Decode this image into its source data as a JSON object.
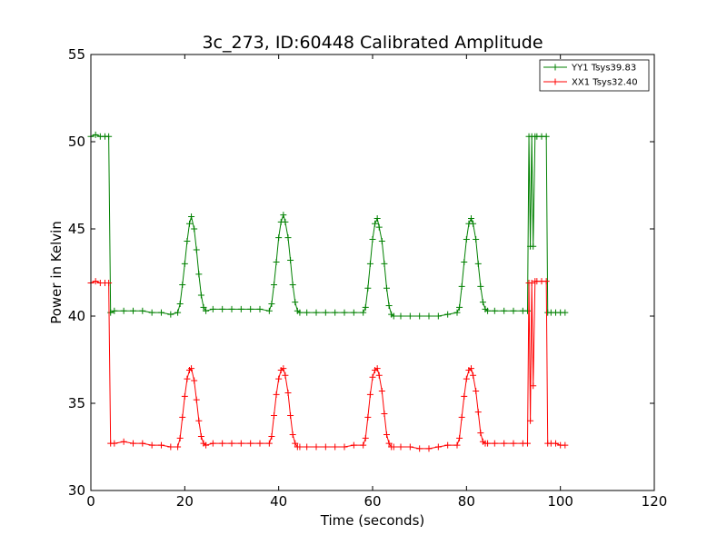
{
  "chart_data": {
    "type": "line",
    "title": "3c_273, ID:60448 Calibrated Amplitude",
    "xlabel": "Time (seconds)",
    "ylabel": "Power in Kelvin",
    "xlim": [
      0,
      120
    ],
    "ylim": [
      30,
      55
    ],
    "xticks": [
      "0",
      "20",
      "40",
      "60",
      "80",
      "100",
      "120"
    ],
    "yticks": [
      "30",
      "35",
      "40",
      "45",
      "50",
      "55"
    ],
    "grid": false,
    "legend_position": "top-right",
    "marker": "plus",
    "series": [
      {
        "name": "YY1 Tsys39.83",
        "color": "#008000",
        "x": [
          0,
          1,
          2,
          3,
          3.8,
          4.2,
          5,
          7,
          9,
          11,
          13,
          15,
          17,
          18.5,
          19,
          19.5,
          20,
          20.5,
          21,
          21.4,
          22,
          22.5,
          23,
          23.5,
          24,
          24.5,
          26,
          28,
          30,
          32,
          34,
          36,
          38,
          38.5,
          39,
          39.5,
          40,
          40.5,
          41,
          41.4,
          42,
          42.5,
          43,
          43.5,
          44,
          44.5,
          46,
          48,
          50,
          52,
          54,
          56,
          58,
          58.5,
          59,
          59.5,
          60,
          60.5,
          61,
          61.4,
          62,
          62.5,
          63,
          63.5,
          64,
          64.5,
          66,
          68,
          70,
          72,
          74,
          76,
          78,
          78.5,
          79,
          79.5,
          80,
          80.5,
          81,
          81.4,
          82,
          82.5,
          83,
          83.5,
          84,
          84.5,
          86,
          88,
          90,
          92,
          93,
          93.3,
          93.6,
          93.9,
          94.2,
          94.6,
          95,
          96,
          97,
          97.3,
          98,
          99,
          100,
          101
        ],
        "y": [
          50.3,
          50.4,
          50.3,
          50.3,
          50.3,
          40.2,
          40.3,
          40.3,
          40.3,
          40.3,
          40.2,
          40.2,
          40.1,
          40.2,
          40.7,
          41.8,
          43.0,
          44.3,
          45.3,
          45.7,
          45.0,
          43.8,
          42.4,
          41.2,
          40.5,
          40.3,
          40.4,
          40.4,
          40.4,
          40.4,
          40.4,
          40.4,
          40.3,
          40.7,
          41.8,
          43.1,
          44.5,
          45.4,
          45.8,
          45.4,
          44.5,
          43.2,
          41.8,
          40.8,
          40.3,
          40.2,
          40.2,
          40.2,
          40.2,
          40.2,
          40.2,
          40.2,
          40.2,
          40.5,
          41.6,
          43.0,
          44.4,
          45.3,
          45.6,
          45.1,
          44.3,
          43.0,
          41.6,
          40.6,
          40.1,
          40.0,
          40.0,
          40.0,
          40.0,
          40.0,
          40.0,
          40.1,
          40.2,
          40.5,
          41.7,
          43.1,
          44.4,
          45.3,
          45.6,
          45.3,
          44.4,
          43.0,
          41.7,
          40.8,
          40.4,
          40.3,
          40.3,
          40.3,
          40.3,
          40.3,
          40.3,
          50.3,
          44.0,
          50.3,
          44.0,
          50.3,
          50.3,
          50.3,
          50.3,
          40.2,
          40.2,
          40.2,
          40.2,
          40.2
        ]
      },
      {
        "name": "XX1 Tsys32.40",
        "color": "#ff0000",
        "x": [
          0,
          1,
          2,
          3,
          3.8,
          4.2,
          5,
          7,
          9,
          11,
          13,
          15,
          17,
          18.5,
          19,
          19.5,
          20,
          20.5,
          21,
          21.4,
          22,
          22.5,
          23,
          23.5,
          24,
          24.5,
          26,
          28,
          30,
          32,
          34,
          36,
          38,
          38.5,
          39,
          39.5,
          40,
          40.5,
          41,
          41.4,
          42,
          42.5,
          43,
          43.5,
          44,
          44.5,
          46,
          48,
          50,
          52,
          54,
          56,
          58,
          58.5,
          59,
          59.5,
          60,
          60.5,
          61,
          61.4,
          62,
          62.5,
          63,
          63.5,
          64,
          64.5,
          66,
          68,
          70,
          72,
          74,
          76,
          78,
          78.5,
          79,
          79.5,
          80,
          80.5,
          81,
          81.4,
          82,
          82.5,
          83,
          83.5,
          84,
          84.5,
          86,
          88,
          90,
          92,
          93,
          93.3,
          93.6,
          93.9,
          94.2,
          94.6,
          95,
          96,
          97,
          97.3,
          98,
          99,
          100,
          101
        ],
        "y": [
          41.9,
          42.0,
          41.9,
          41.9,
          41.9,
          32.7,
          32.7,
          32.8,
          32.7,
          32.7,
          32.6,
          32.6,
          32.5,
          32.5,
          33.0,
          34.2,
          35.4,
          36.4,
          36.9,
          37.0,
          36.3,
          35.2,
          34.0,
          33.1,
          32.7,
          32.6,
          32.7,
          32.7,
          32.7,
          32.7,
          32.7,
          32.7,
          32.7,
          33.1,
          34.3,
          35.5,
          36.4,
          36.9,
          37.0,
          36.6,
          35.6,
          34.3,
          33.2,
          32.7,
          32.5,
          32.5,
          32.5,
          32.5,
          32.5,
          32.5,
          32.5,
          32.6,
          32.6,
          33.0,
          34.2,
          35.5,
          36.5,
          36.9,
          37.0,
          36.6,
          35.7,
          34.4,
          33.2,
          32.7,
          32.5,
          32.5,
          32.5,
          32.5,
          32.4,
          32.4,
          32.5,
          32.6,
          32.6,
          33.0,
          34.2,
          35.4,
          36.4,
          36.9,
          37.0,
          36.6,
          35.7,
          34.5,
          33.3,
          32.8,
          32.7,
          32.7,
          32.7,
          32.7,
          32.7,
          32.7,
          32.7,
          41.9,
          34.0,
          41.9,
          36.0,
          42.0,
          42.0,
          42.0,
          42.0,
          32.7,
          32.7,
          32.7,
          32.6,
          32.6
        ]
      }
    ]
  }
}
